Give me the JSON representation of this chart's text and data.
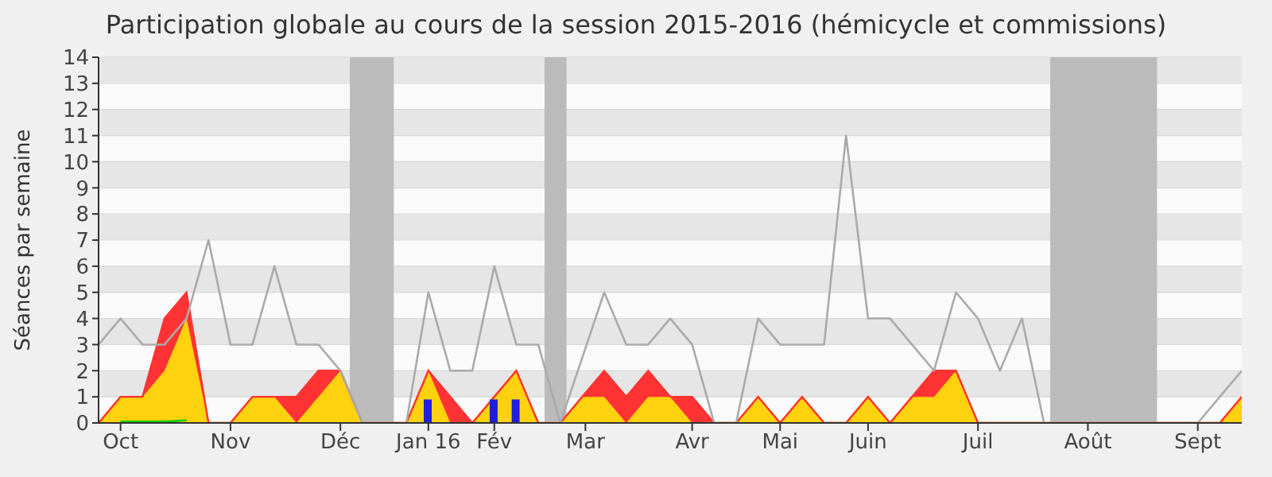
{
  "chart_data": {
    "type": "area",
    "title": "Participation globale au cours de la session 2015-2016 (hémicycle et commissions)",
    "ylabel": "Séances par semaine",
    "x": [
      "2015-09-28",
      "2015-10-05",
      "2015-10-12",
      "2015-10-19",
      "2015-10-26",
      "2015-11-02",
      "2015-11-09",
      "2015-11-16",
      "2015-11-23",
      "2015-11-30",
      "2015-12-07",
      "2015-12-14",
      "2015-12-21",
      "2015-12-28",
      "2016-01-04",
      "2016-01-11",
      "2016-01-18",
      "2016-01-25",
      "2016-02-01",
      "2016-02-08",
      "2016-02-15",
      "2016-02-22",
      "2016-02-29",
      "2016-03-07",
      "2016-03-14",
      "2016-03-21",
      "2016-03-28",
      "2016-04-04",
      "2016-04-11",
      "2016-04-18",
      "2016-04-25",
      "2016-05-02",
      "2016-05-09",
      "2016-05-16",
      "2016-05-23",
      "2016-05-30",
      "2016-06-06",
      "2016-06-13",
      "2016-06-20",
      "2016-06-27",
      "2016-07-04",
      "2016-07-11",
      "2016-07-18",
      "2016-07-25",
      "2016-08-01",
      "2016-08-08",
      "2016-08-15",
      "2016-08-22",
      "2016-08-29",
      "2016-09-05",
      "2016-09-12",
      "2016-09-19",
      "2016-09-26"
    ],
    "stacked": true,
    "series": [
      {
        "color": "#ffd20f",
        "values": [
          0,
          1,
          1,
          2,
          4,
          0,
          0,
          1,
          1,
          0,
          1,
          2,
          0,
          0,
          0,
          2,
          0,
          0,
          1,
          2,
          0,
          0,
          1,
          1,
          0,
          1,
          1,
          0,
          0,
          0,
          1,
          0,
          1,
          0,
          0,
          1,
          0,
          1,
          1,
          2,
          0,
          0,
          0,
          0,
          0,
          0,
          0,
          0,
          0,
          0,
          0,
          0,
          1
        ]
      },
      {
        "color": "#ff3333",
        "values": [
          0,
          0,
          0,
          2,
          1,
          0,
          0,
          0,
          0,
          1,
          1,
          0,
          0,
          0,
          0,
          0,
          1,
          0,
          0,
          0,
          0,
          0,
          0,
          1,
          1,
          1,
          0,
          1,
          0,
          0,
          0,
          0,
          0,
          0,
          0,
          0,
          0,
          0,
          1,
          0,
          0,
          0,
          0,
          0,
          0,
          0,
          0,
          0,
          0,
          0,
          0,
          0,
          0
        ]
      },
      {
        "type": "line",
        "color": "#00cc00",
        "values": [
          null,
          0.05,
          0.05,
          0.05,
          0.1,
          null,
          null,
          null,
          null,
          null,
          null,
          null,
          null,
          null,
          null,
          null,
          null,
          null,
          null,
          null,
          null,
          null,
          null,
          null,
          null,
          null,
          null,
          null,
          null,
          null,
          null,
          null,
          null,
          null,
          null,
          null,
          null,
          null,
          null,
          null,
          null,
          null,
          null,
          null,
          null,
          null,
          null,
          null,
          null,
          null,
          null,
          null,
          null
        ]
      },
      {
        "type": "line",
        "color": "#aaaaaa",
        "values": [
          3,
          4,
          3,
          3,
          4,
          7,
          3,
          3,
          6,
          3,
          3,
          2,
          0,
          0,
          0,
          5,
          2,
          2,
          6,
          3,
          3,
          0,
          2.5,
          5,
          3,
          3,
          4,
          3,
          0,
          0,
          4,
          3,
          3,
          3,
          11,
          4,
          4,
          3,
          2,
          5,
          4,
          2,
          4,
          0,
          0,
          0,
          0,
          0,
          0,
          0,
          0,
          1,
          2
        ]
      },
      {
        "type": "bar",
        "color": "#1f1fdd",
        "values": [
          null,
          null,
          null,
          null,
          null,
          null,
          null,
          null,
          null,
          null,
          null,
          null,
          null,
          null,
          null,
          0.9,
          null,
          null,
          0.9,
          0.9,
          null,
          null,
          null,
          null,
          null,
          null,
          null,
          null,
          null,
          null,
          null,
          null,
          null,
          null,
          null,
          null,
          null,
          null,
          null,
          null,
          null,
          null,
          null,
          null,
          null,
          null,
          null,
          null,
          null,
          null,
          null,
          null,
          null
        ]
      }
    ],
    "xlim": [
      "2015-09-28",
      "2016-09-26"
    ],
    "xticks": [
      {
        "value": "2015-10-05",
        "label": "Oct"
      },
      {
        "value": "2015-11-09",
        "label": "Nov"
      },
      {
        "value": "2015-12-14",
        "label": "Déc"
      },
      {
        "value": "2016-01-11",
        "label": "Jan 16"
      },
      {
        "value": "2016-02-01",
        "label": "Fév"
      },
      {
        "value": "2016-03-01",
        "label": "Mar"
      },
      {
        "value": "2016-04-04",
        "label": "Avr"
      },
      {
        "value": "2016-05-02",
        "label": "Mai"
      },
      {
        "value": "2016-05-30",
        "label": "Juin"
      },
      {
        "value": "2016-07-04",
        "label": "Juil"
      },
      {
        "value": "2016-08-08",
        "label": "Août"
      },
      {
        "value": "2016-09-12",
        "label": "Sept"
      }
    ],
    "ylim": [
      0,
      14
    ],
    "yticks": [
      0,
      1,
      2,
      3,
      4,
      5,
      6,
      7,
      8,
      9,
      10,
      11,
      12,
      13,
      14
    ],
    "grid": "y",
    "bands": [
      {
        "axis": "x",
        "from": "2015-12-17",
        "to": "2015-12-31",
        "color": "#bbbbbb"
      },
      {
        "axis": "x",
        "from": "2016-02-17",
        "to": "2016-02-24",
        "color": "#bbbbbb"
      },
      {
        "axis": "x",
        "from": "2016-07-27",
        "to": "2016-08-30",
        "color": "#bbbbbb"
      }
    ]
  }
}
